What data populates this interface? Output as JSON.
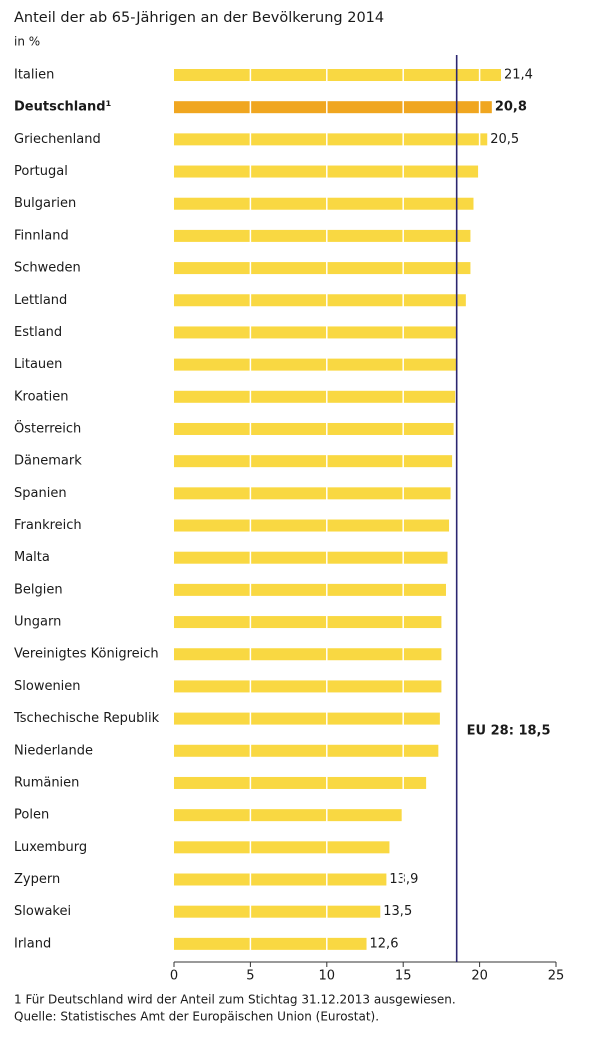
{
  "chart_data": {
    "type": "bar",
    "orientation": "horizontal",
    "title": "Anteil der ab 65-Jährigen an der Bevölkerung 2014",
    "subtitle": "in %",
    "categories": [
      "Italien",
      "Deutschland¹",
      "Griechenland",
      "Portugal",
      "Bulgarien",
      "Finnland",
      "Schweden",
      "Lettland",
      "Estland",
      "Litauen",
      "Kroatien",
      "Österreich",
      "Dänemark",
      "Spanien",
      "Frankreich",
      "Malta",
      "Belgien",
      "Ungarn",
      "Vereinigtes Königreich",
      "Slowenien",
      "Tschechische Republik",
      "Niederlande",
      "Rumänien",
      "Polen",
      "Luxemburg",
      "Zypern",
      "Slowakei",
      "Irland"
    ],
    "values": [
      21.4,
      20.8,
      20.5,
      19.9,
      19.6,
      19.4,
      19.4,
      19.1,
      18.5,
      18.5,
      18.4,
      18.3,
      18.2,
      18.1,
      18.0,
      17.9,
      17.8,
      17.5,
      17.5,
      17.5,
      17.4,
      17.3,
      16.5,
      14.9,
      14.1,
      13.9,
      13.5,
      12.6
    ],
    "value_labels": [
      "21,4",
      "20,8",
      "20,5",
      null,
      null,
      null,
      null,
      null,
      null,
      null,
      null,
      null,
      null,
      null,
      null,
      null,
      null,
      null,
      null,
      null,
      null,
      null,
      null,
      null,
      null,
      "13,9",
      "13,5",
      "12,6"
    ],
    "color": "#f9d842",
    "highlight_color": "#f0a620",
    "highlight_index": 1,
    "xlim": [
      0,
      25
    ],
    "xticks": [
      0,
      5,
      10,
      15,
      20,
      25
    ],
    "grid": true,
    "reference_value": 18.5,
    "reference_label": "EU 28: 18,5",
    "reference_color": "#2b2670",
    "footnote": "1 Für Deutschland wird der Anteil zum Stichtag 31.12.2013 ausgewiesen.",
    "source": "Quelle: Statistisches Amt der Europäischen Union (Eurostat)."
  }
}
